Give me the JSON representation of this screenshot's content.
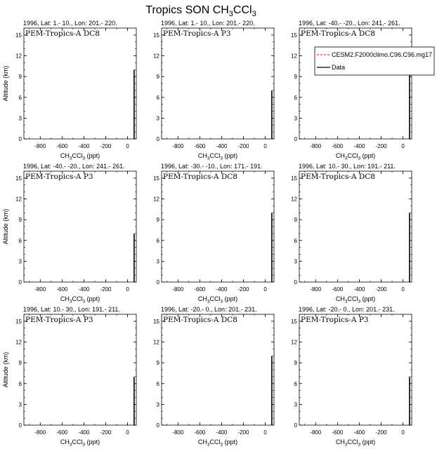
{
  "figure": {
    "title_main": "Tropics SON CH",
    "title_sub1": "3",
    "title_mid": "CCl",
    "title_sub2": "3"
  },
  "axis": {
    "x_ticks": [
      -800,
      -600,
      -400,
      -200,
      0
    ],
    "y_ticks": [
      0,
      3,
      6,
      9,
      12,
      15
    ],
    "xlim": [
      -950,
      80
    ],
    "ylim": [
      0,
      16
    ],
    "x_minor_step": 100,
    "y_minor_step": 1,
    "xlabel_main": "CH",
    "xlabel_sub1": "3",
    "xlabel_mid": "CCl",
    "xlabel_sub2": "3",
    "xlabel_unit": " (ppt)",
    "ylabel": "Altitude (km)"
  },
  "legend": {
    "entries": [
      {
        "name": "CESM2.F2000climo.C96.C96.mg17",
        "color": "#ff0000",
        "dash": true
      },
      {
        "name": "Data",
        "color": "#000000",
        "dash": false
      }
    ]
  },
  "chart_data": [
    {
      "type": "line",
      "subtitle": "1996, Lat: 1.- 10., Lon: 201.- 220.",
      "campaign": "PEM-Tropics-A DC8",
      "data_x": 60,
      "data_y": [
        0,
        10
      ]
    },
    {
      "type": "line",
      "subtitle": "1996, Lat: 1.- 10., Lon: 201.- 220.",
      "campaign": "PEM-Tropics-A P3",
      "data_x": 60,
      "data_y": [
        0,
        7
      ]
    },
    {
      "type": "line",
      "subtitle": "1996, Lat: -40.- -20., Lon: 241.- 261.",
      "campaign": "PEM-Tropics-A DC8",
      "data_x": 60,
      "data_y": [
        0,
        10
      ]
    },
    {
      "type": "line",
      "subtitle": "1996, Lat: -40.- -20., Lon: 241.- 261.",
      "campaign": "PEM-Tropics-A P3",
      "data_x": 60,
      "data_y": [
        0,
        7
      ]
    },
    {
      "type": "line",
      "subtitle": "1996, Lat: -30.- -10., Lon: 171.- 191.",
      "campaign": "PEM-Tropics-A DC8",
      "data_x": 60,
      "data_y": [
        0,
        10
      ]
    },
    {
      "type": "line",
      "subtitle": "1996, Lat: 10.- 30., Lon: 191.- 211.",
      "campaign": "PEM-Tropics-A DC8",
      "data_x": 60,
      "data_y": [
        0,
        10
      ]
    },
    {
      "type": "line",
      "subtitle": "1996, Lat: 10.- 30., Lon: 191.- 211.",
      "campaign": "PEM-Tropics-A P3",
      "data_x": 60,
      "data_y": [
        0,
        7
      ]
    },
    {
      "type": "line",
      "subtitle": "1996, Lat: -20.- 0., Lon: 201.- 231.",
      "campaign": "PEM-Tropics-A DC8",
      "data_x": 60,
      "data_y": [
        0,
        10
      ]
    },
    {
      "type": "line",
      "subtitle": "1996, Lat: -20.- 0., Lon: 201.- 231.",
      "campaign": "PEM-Tropics-A P3",
      "data_x": 60,
      "data_y": [
        0,
        7
      ]
    }
  ]
}
